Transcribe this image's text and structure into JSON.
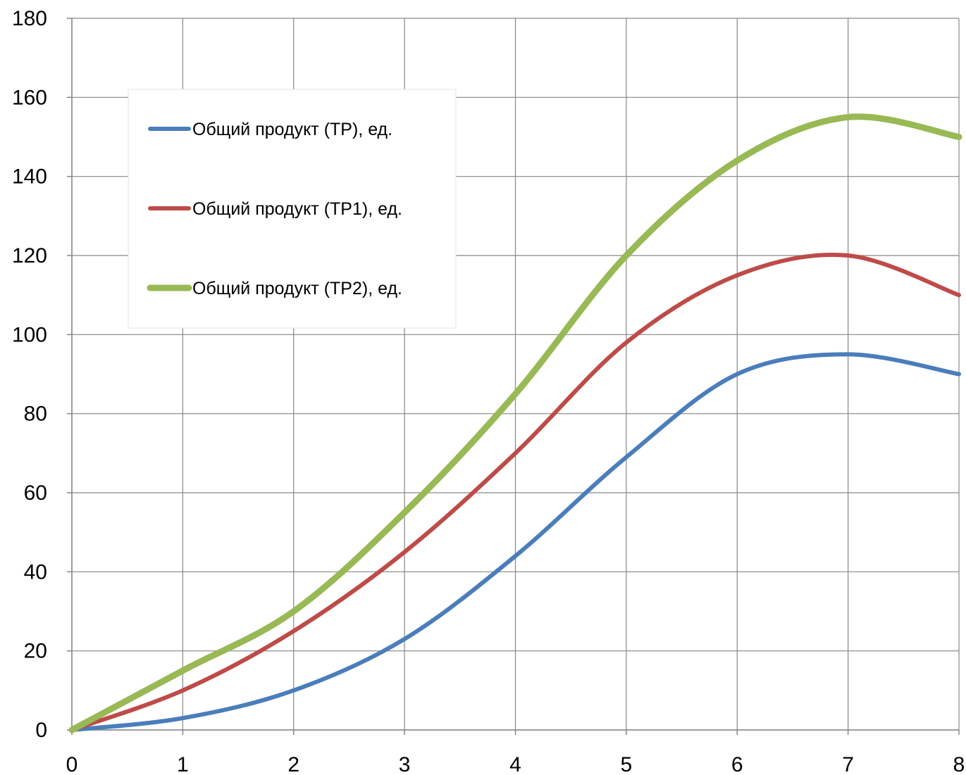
{
  "chart_data": {
    "type": "line",
    "title": "",
    "xlabel": "",
    "ylabel": "",
    "x": [
      0,
      1,
      2,
      3,
      4,
      5,
      6,
      7,
      8
    ],
    "xlim": [
      0,
      8
    ],
    "ylim": [
      0,
      180
    ],
    "x_ticks": [
      "0",
      "1",
      "2",
      "3",
      "4",
      "5",
      "6",
      "7",
      "8"
    ],
    "y_ticks": [
      "0",
      "20",
      "40",
      "60",
      "80",
      "100",
      "120",
      "140",
      "160",
      "180"
    ],
    "grid": true,
    "smooth": true,
    "legend": {
      "position": "top-left",
      "boxed": true
    },
    "series": [
      {
        "name": "Общий продукт (TP), ед.",
        "color": "#4a7ebb",
        "values": [
          0,
          3,
          10,
          23,
          44,
          69,
          90,
          95,
          90
        ]
      },
      {
        "name": "Общий продукт (TP1), ед.",
        "color": "#be4b48",
        "values": [
          0,
          10,
          25,
          45,
          70,
          98,
          115,
          120,
          110
        ]
      },
      {
        "name": "Общий продукт (TP2), ед.",
        "color": "#98b954",
        "values": [
          0,
          15,
          30,
          55,
          85,
          120,
          144,
          155,
          150
        ]
      }
    ]
  }
}
